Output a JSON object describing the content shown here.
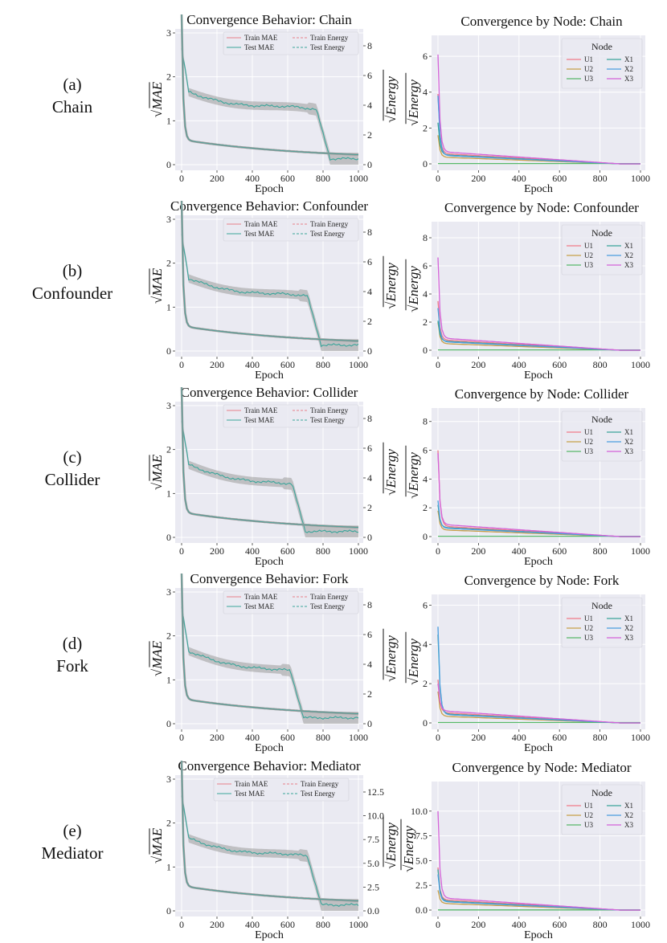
{
  "rows": [
    {
      "letter": "(a)",
      "name": "Chain",
      "left": {
        "title": "Convergence Behavior: Chain",
        "energy_ticks": [
          0,
          2,
          4,
          6,
          8
        ]
      },
      "right": {
        "title": "Convergence by Node: Chain",
        "yticks": [
          0,
          2,
          4,
          6
        ],
        "ymax": 6.9,
        "peaks": [
          3.9,
          1.6,
          0.0,
          2.3,
          3.8,
          6.1
        ]
      }
    },
    {
      "letter": "(b)",
      "name": "Confounder",
      "left": {
        "title": "Convergence Behavior: Confounder",
        "energy_ticks": [
          0,
          2,
          4,
          6,
          8
        ]
      },
      "right": {
        "title": "Convergence by Node: Confounder",
        "yticks": [
          0,
          2,
          4,
          6,
          8
        ],
        "ymax": 8.8,
        "peaks": [
          3.5,
          2.0,
          0.0,
          2.1,
          3.0,
          6.6
        ]
      }
    },
    {
      "letter": "(c)",
      "name": "Collider",
      "left": {
        "title": "Convergence Behavior: Collider",
        "energy_ticks": [
          0,
          2,
          4,
          6,
          8
        ]
      },
      "right": {
        "title": "Convergence by Node: Collider",
        "yticks": [
          0,
          2,
          4,
          6,
          8
        ],
        "ymax": 8.6,
        "peaks": [
          6.0,
          1.8,
          0.0,
          2.2,
          2.5,
          5.8
        ]
      }
    },
    {
      "letter": "(d)",
      "name": "Fork",
      "left": {
        "title": "Convergence Behavior: Fork",
        "energy_ticks": [
          0,
          2,
          4,
          6,
          8
        ]
      },
      "right": {
        "title": "Convergence by Node: Fork",
        "yticks": [
          0,
          2,
          4,
          6
        ],
        "ymax": 6.3,
        "peaks": [
          2.2,
          1.6,
          0.0,
          4.5,
          4.9,
          2.0
        ]
      }
    },
    {
      "letter": "(e)",
      "name": "Mediator",
      "left": {
        "title": "Convergence Behavior: Mediator",
        "energy_ticks": [
          "0.0",
          "2.5",
          "5.0",
          "7.5",
          "10.0",
          "12.5"
        ]
      },
      "right": {
        "title": "Convergence by Node: Mediator",
        "yticks": [
          "0.0",
          "2.5",
          "5.0",
          "7.5",
          "10.0"
        ],
        "ymax": 12.5,
        "peaks": [
          4.3,
          2.0,
          0.0,
          4.1,
          3.6,
          10.0
        ]
      }
    }
  ],
  "chart_data": {
    "type": "line",
    "x_label": "Epoch",
    "x_ticks": [
      0,
      200,
      400,
      600,
      800,
      1000
    ],
    "left_y_label": "√MAE",
    "left_y_ticks": [
      0,
      1,
      2,
      3
    ],
    "energy_y_label": "√Energy",
    "left_legend": [
      "Train MAE",
      "Test MAE",
      "Train Energy",
      "Test Energy"
    ],
    "node_y_label": "√Energy",
    "node_legend_title": "Node",
    "node_legend": [
      "U1",
      "U2",
      "U3",
      "X1",
      "X2",
      "X3"
    ],
    "colors": {
      "plot_bg": "#eaeaf2",
      "train_mae": "#e8808a",
      "test_mae": "#3aa59a",
      "energy_band": "#9a9a9a",
      "U1": "#f07a88",
      "U2": "#c8a04a",
      "U3": "#57b86a",
      "X1": "#3aa59a",
      "X2": "#4a9ee0",
      "X3": "#d462d8"
    }
  }
}
